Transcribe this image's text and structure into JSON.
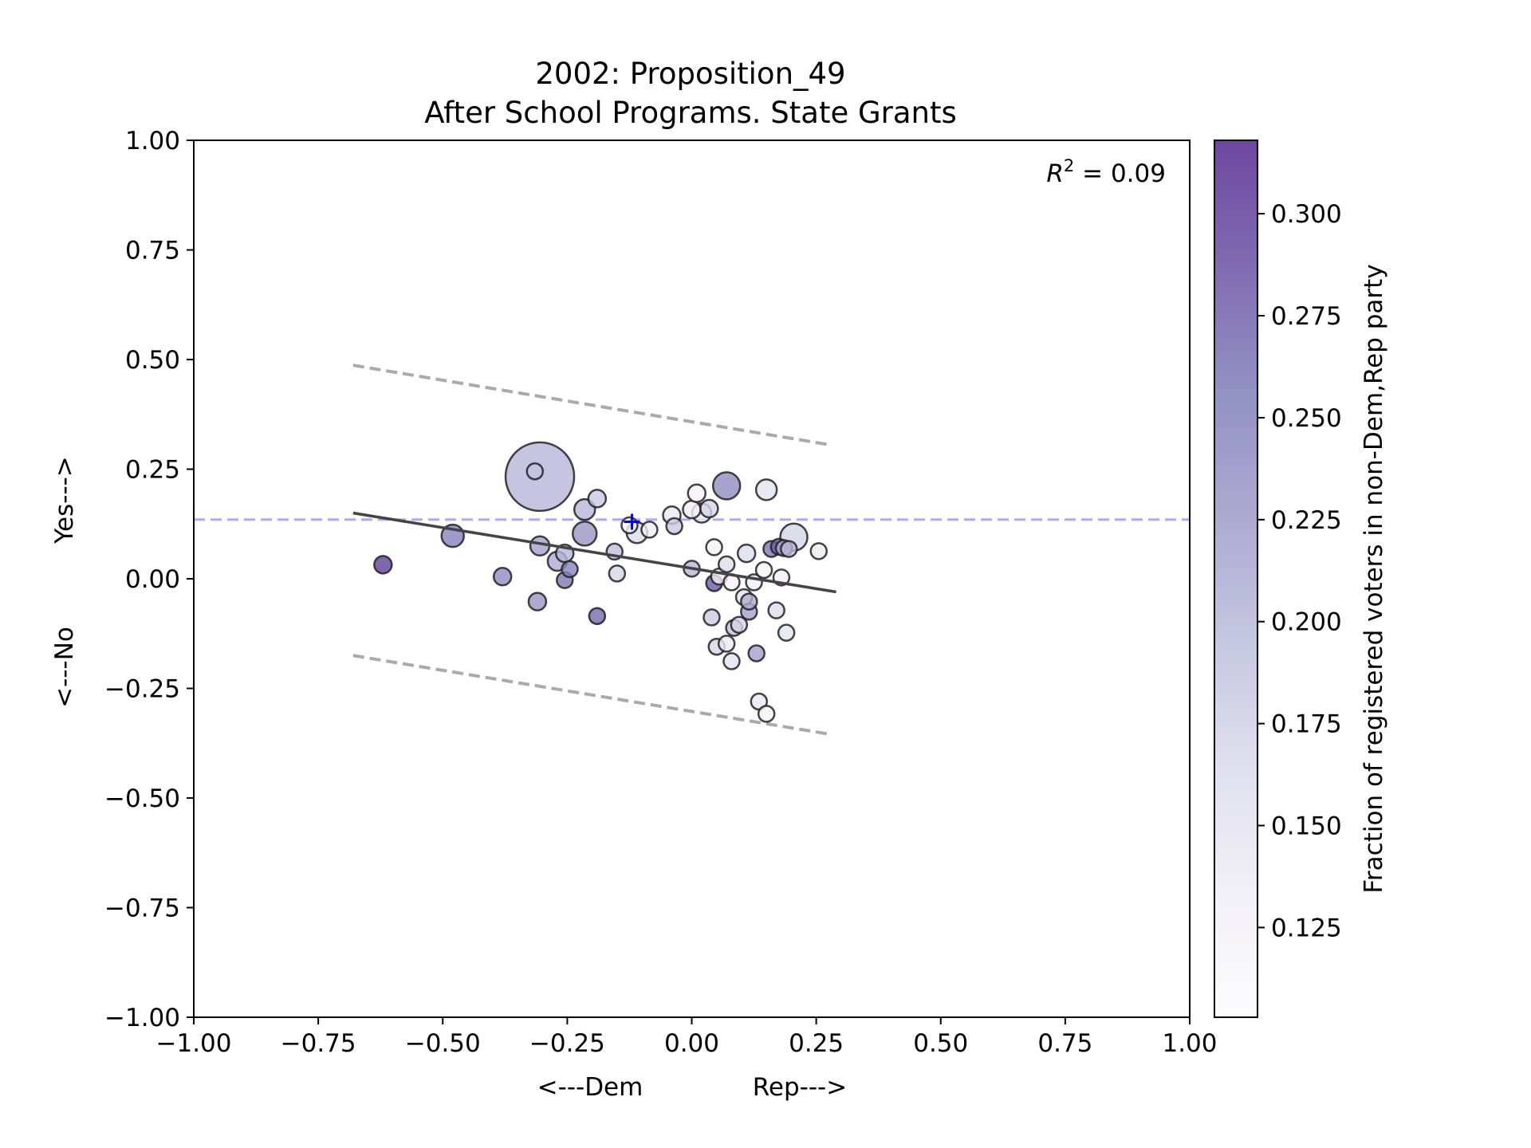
{
  "chart_data": {
    "type": "scatter",
    "title": "2002: Proposition_49",
    "subtitle": "After School Programs. State Grants",
    "xlabel_left": "<---Dem",
    "xlabel_right": "Rep--->",
    "ylabel_bottom": "<---No",
    "ylabel_top": "Yes--->",
    "xlim": [
      -1.0,
      1.0
    ],
    "ylim": [
      -1.0,
      1.0
    ],
    "xticks": [
      "−1.00",
      "−0.75",
      "−0.50",
      "−0.25",
      "0.00",
      "0.25",
      "0.50",
      "0.75",
      "1.00"
    ],
    "yticks": [
      "−1.00",
      "−0.75",
      "−0.50",
      "−0.25",
      "0.00",
      "0.25",
      "0.50",
      "0.75",
      "1.00"
    ],
    "grid": false,
    "annotation": {
      "label": "R",
      "sup": "2",
      "value": " = 0.09"
    },
    "reference_line": {
      "y": 0.135,
      "color": "#aaaaff",
      "style": "dashed"
    },
    "marker": {
      "x": -0.12,
      "y": 0.13,
      "symbol": "+",
      "color": "#0000ff"
    },
    "fit_line": {
      "x": [
        -0.68,
        0.29
      ],
      "y": [
        0.15,
        -0.03
      ],
      "color": "#444444"
    },
    "band_upper": {
      "x": [
        -0.68,
        0.28
      ],
      "y": [
        0.487,
        0.305
      ],
      "color": "#aaaaaa"
    },
    "band_lower": {
      "x": [
        -0.68,
        0.28
      ],
      "y": [
        -0.175,
        -0.355
      ],
      "color": "#aaaaaa"
    },
    "colorbar": {
      "label": "Fraction of registered voters in non-Dem,Rep party",
      "range": [
        0.103,
        0.318
      ],
      "ticks": [
        "0.125",
        "0.150",
        "0.175",
        "0.200",
        "0.225",
        "0.250",
        "0.275",
        "0.300"
      ],
      "colors": [
        "#fcfbfd",
        "#efedf5",
        "#dadaeb",
        "#bcbddc",
        "#9e9ac8",
        "#807dba",
        "#6a51a3",
        "#54278f"
      ]
    },
    "points": [
      {
        "x": -0.62,
        "y": 0.032,
        "s": 11,
        "c": 0.3
      },
      {
        "x": -0.48,
        "y": 0.098,
        "s": 14,
        "c": 0.25
      },
      {
        "x": -0.38,
        "y": 0.005,
        "s": 11,
        "c": 0.24
      },
      {
        "x": -0.315,
        "y": 0.245,
        "s": 10,
        "c": 0.19
      },
      {
        "x": -0.31,
        "y": -0.052,
        "s": 11,
        "c": 0.23
      },
      {
        "x": -0.305,
        "y": 0.233,
        "s": 43,
        "c": 0.2
      },
      {
        "x": -0.305,
        "y": 0.075,
        "s": 12,
        "c": 0.22
      },
      {
        "x": -0.27,
        "y": 0.04,
        "s": 12,
        "c": 0.21
      },
      {
        "x": -0.255,
        "y": 0.058,
        "s": 11,
        "c": 0.2
      },
      {
        "x": -0.255,
        "y": -0.003,
        "s": 10,
        "c": 0.26
      },
      {
        "x": -0.245,
        "y": 0.022,
        "s": 10,
        "c": 0.25
      },
      {
        "x": -0.215,
        "y": 0.158,
        "s": 13,
        "c": 0.2
      },
      {
        "x": -0.215,
        "y": 0.103,
        "s": 15,
        "c": 0.23
      },
      {
        "x": -0.19,
        "y": 0.183,
        "s": 11,
        "c": 0.18
      },
      {
        "x": -0.19,
        "y": -0.085,
        "s": 10,
        "c": 0.27
      },
      {
        "x": -0.155,
        "y": 0.062,
        "s": 10,
        "c": 0.19
      },
      {
        "x": -0.15,
        "y": 0.012,
        "s": 10,
        "c": 0.17
      },
      {
        "x": -0.125,
        "y": 0.122,
        "s": 10,
        "c": 0.12
      },
      {
        "x": -0.11,
        "y": 0.105,
        "s": 13,
        "c": 0.16
      },
      {
        "x": -0.085,
        "y": 0.112,
        "s": 10,
        "c": 0.13
      },
      {
        "x": -0.04,
        "y": 0.145,
        "s": 11,
        "c": 0.14
      },
      {
        "x": -0.035,
        "y": 0.12,
        "s": 10,
        "c": 0.18
      },
      {
        "x": 0.0,
        "y": 0.158,
        "s": 11,
        "c": 0.13
      },
      {
        "x": 0.0,
        "y": 0.023,
        "s": 10,
        "c": 0.2
      },
      {
        "x": 0.01,
        "y": 0.195,
        "s": 11,
        "c": 0.12
      },
      {
        "x": 0.02,
        "y": 0.15,
        "s": 12,
        "c": 0.14
      },
      {
        "x": 0.035,
        "y": 0.16,
        "s": 11,
        "c": 0.17
      },
      {
        "x": 0.04,
        "y": -0.088,
        "s": 10,
        "c": 0.18
      },
      {
        "x": 0.045,
        "y": 0.072,
        "s": 10,
        "c": 0.12
      },
      {
        "x": 0.045,
        "y": -0.01,
        "s": 10,
        "c": 0.28
      },
      {
        "x": 0.05,
        "y": -0.155,
        "s": 10,
        "c": 0.17
      },
      {
        "x": 0.055,
        "y": 0.005,
        "s": 10,
        "c": 0.13
      },
      {
        "x": 0.07,
        "y": 0.033,
        "s": 10,
        "c": 0.16
      },
      {
        "x": 0.07,
        "y": -0.148,
        "s": 10,
        "c": 0.14
      },
      {
        "x": 0.07,
        "y": 0.212,
        "s": 17,
        "c": 0.24
      },
      {
        "x": 0.08,
        "y": -0.008,
        "s": 10,
        "c": 0.12
      },
      {
        "x": 0.08,
        "y": -0.188,
        "s": 10,
        "c": 0.15
      },
      {
        "x": 0.085,
        "y": -0.112,
        "s": 10,
        "c": 0.19
      },
      {
        "x": 0.095,
        "y": -0.105,
        "s": 10,
        "c": 0.17
      },
      {
        "x": 0.105,
        "y": -0.042,
        "s": 10,
        "c": 0.15
      },
      {
        "x": 0.11,
        "y": 0.058,
        "s": 11,
        "c": 0.16
      },
      {
        "x": 0.115,
        "y": -0.075,
        "s": 10,
        "c": 0.22
      },
      {
        "x": 0.115,
        "y": -0.052,
        "s": 10,
        "c": 0.21
      },
      {
        "x": 0.125,
        "y": -0.008,
        "s": 10,
        "c": 0.13
      },
      {
        "x": 0.13,
        "y": -0.17,
        "s": 10,
        "c": 0.22
      },
      {
        "x": 0.135,
        "y": -0.28,
        "s": 10,
        "c": 0.14
      },
      {
        "x": 0.145,
        "y": 0.02,
        "s": 10,
        "c": 0.12
      },
      {
        "x": 0.15,
        "y": -0.308,
        "s": 10,
        "c": 0.12
      },
      {
        "x": 0.15,
        "y": 0.203,
        "s": 13,
        "c": 0.15
      },
      {
        "x": 0.16,
        "y": 0.068,
        "s": 10,
        "c": 0.26
      },
      {
        "x": 0.17,
        "y": -0.072,
        "s": 10,
        "c": 0.16
      },
      {
        "x": 0.175,
        "y": 0.073,
        "s": 10,
        "c": 0.28
      },
      {
        "x": 0.18,
        "y": 0.003,
        "s": 10,
        "c": 0.13
      },
      {
        "x": 0.185,
        "y": 0.07,
        "s": 10,
        "c": 0.21
      },
      {
        "x": 0.19,
        "y": -0.123,
        "s": 10,
        "c": 0.15
      },
      {
        "x": 0.195,
        "y": 0.068,
        "s": 10,
        "c": 0.2
      },
      {
        "x": 0.205,
        "y": 0.095,
        "s": 17,
        "c": 0.17
      },
      {
        "x": 0.255,
        "y": 0.063,
        "s": 10,
        "c": 0.14
      }
    ]
  }
}
